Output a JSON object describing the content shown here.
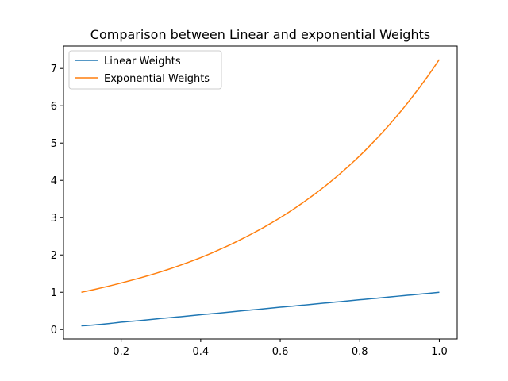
{
  "chart_data": {
    "type": "line",
    "title": "Comparison between Linear and exponential Weights",
    "xlabel": "",
    "ylabel": "",
    "xlim": [
      0.055,
      1.045
    ],
    "ylim": [
      -0.25,
      7.6
    ],
    "xticks": [
      0.2,
      0.4,
      0.6,
      0.8,
      1.0
    ],
    "xtick_labels": [
      "0.2",
      "0.4",
      "0.6",
      "0.8",
      "1.0"
    ],
    "yticks": [
      0,
      1,
      2,
      3,
      4,
      5,
      6,
      7
    ],
    "ytick_labels": [
      "0",
      "1",
      "2",
      "3",
      "4",
      "5",
      "6",
      "7"
    ],
    "grid": false,
    "legend_position": "top-left",
    "x": [
      0.1,
      0.2,
      0.3,
      0.4,
      0.5,
      0.6,
      0.7,
      0.8,
      0.9,
      1.0
    ],
    "series": [
      {
        "name": "Linear Weights",
        "color": "#1f77b4",
        "values": [
          0.1,
          0.2,
          0.3,
          0.4,
          0.5,
          0.6,
          0.7,
          0.8,
          0.9,
          1.0
        ]
      },
      {
        "name": "Exponential Weights",
        "color": "#ff7f0e",
        "values": [
          1.0,
          1.25,
          1.55,
          1.93,
          2.41,
          3.0,
          3.74,
          4.66,
          5.81,
          7.24
        ]
      }
    ]
  }
}
